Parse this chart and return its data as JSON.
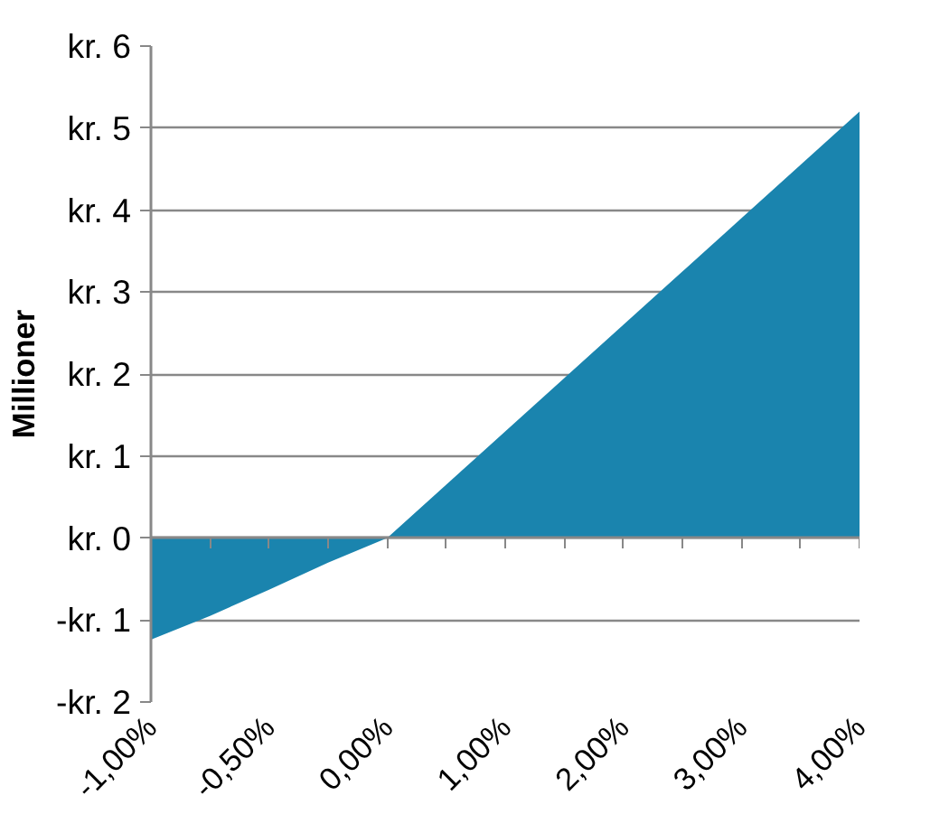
{
  "chart_data": {
    "type": "area",
    "ylabel": "Millioner",
    "categories": [
      "-1,00%",
      null,
      "-0,50%",
      null,
      "0,00%",
      null,
      "1,00%",
      null,
      "2,00%",
      null,
      "3,00%",
      null,
      "4,00%"
    ],
    "series": [
      {
        "color": "#1a84ae",
        "values": [
          -1.24,
          -0.95,
          -0.63,
          -0.3,
          0,
          0.65,
          1.3,
          1.95,
          2.6,
          3.25,
          3.9,
          4.55,
          5.2
        ]
      }
    ],
    "ylim": [
      -2,
      6
    ],
    "yticks": [
      {
        "value": -2,
        "label": "-kr. 2"
      },
      {
        "value": -1,
        "label": "-kr. 1"
      },
      {
        "value": 0,
        "label": "kr. 0"
      },
      {
        "value": 1,
        "label": "kr. 1"
      },
      {
        "value": 2,
        "label": "kr. 2"
      },
      {
        "value": 3,
        "label": "kr. 3"
      },
      {
        "value": 4,
        "label": "kr. 4"
      },
      {
        "value": 5,
        "label": "kr. 5"
      },
      {
        "value": 6,
        "label": "kr. 6"
      }
    ],
    "grid": "y"
  }
}
